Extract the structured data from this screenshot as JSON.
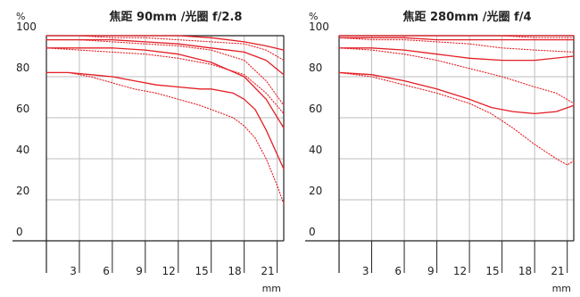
{
  "chart_data": [
    {
      "type": "line",
      "title": "焦距 90mm /光圈 f/2.8",
      "ylabel": "%",
      "xlabel": "mm",
      "xlim": [
        0,
        21.6
      ],
      "ylim": [
        0,
        100
      ],
      "y_ticks": [
        0,
        20,
        40,
        60,
        80,
        100
      ],
      "x_ticks": [
        3,
        6,
        9,
        12,
        15,
        18,
        21
      ],
      "grid": true,
      "series": [
        {
          "style": "solid",
          "x": [
            0,
            3,
            6,
            9,
            12,
            15,
            18,
            20,
            21.6
          ],
          "y": [
            100,
            100,
            100,
            100,
            100,
            99,
            97,
            95,
            93
          ]
        },
        {
          "style": "dotted",
          "x": [
            0,
            3,
            6,
            9,
            12,
            15,
            18,
            20,
            21.6
          ],
          "y": [
            100,
            100,
            99,
            99,
            98,
            97,
            96,
            93,
            88
          ]
        },
        {
          "style": "solid",
          "x": [
            0,
            3,
            6,
            9,
            12,
            15,
            18,
            20,
            21.6
          ],
          "y": [
            98,
            98,
            98,
            97,
            96,
            94,
            92,
            88,
            81
          ]
        },
        {
          "style": "dotted",
          "x": [
            0,
            3,
            6,
            9,
            12,
            15,
            18,
            20,
            21.6
          ],
          "y": [
            98,
            98,
            97,
            96,
            95,
            93,
            88,
            78,
            66
          ]
        },
        {
          "style": "solid",
          "x": [
            0,
            3,
            6,
            9,
            12,
            15,
            18,
            20,
            21.6
          ],
          "y": [
            94,
            94,
            94,
            93,
            91,
            87,
            80,
            69,
            55
          ]
        },
        {
          "style": "dotted",
          "x": [
            0,
            3,
            6,
            9,
            12,
            15,
            18,
            20,
            21.6
          ],
          "y": [
            94,
            93,
            92,
            91,
            89,
            86,
            81,
            72,
            62
          ]
        },
        {
          "style": "solid",
          "x": [
            0,
            2,
            4,
            6,
            8,
            10,
            12,
            14,
            15,
            16,
            17,
            18,
            19,
            20,
            21.6
          ],
          "y": [
            82,
            82,
            81,
            80,
            78,
            76,
            75,
            74,
            74,
            73,
            72,
            69,
            64,
            54,
            35
          ]
        },
        {
          "style": "dotted",
          "x": [
            0,
            2,
            4,
            6,
            8,
            10,
            12,
            14,
            16,
            17,
            18,
            19,
            20,
            21,
            21.6
          ],
          "y": [
            82,
            82,
            80,
            77,
            74,
            72,
            69,
            66,
            62,
            60,
            56,
            50,
            40,
            27,
            18
          ]
        }
      ]
    },
    {
      "type": "line",
      "title": "焦距 280mm /光圈 f/4",
      "ylabel": "%",
      "xlabel": "mm",
      "xlim": [
        0,
        21.6
      ],
      "ylim": [
        0,
        100
      ],
      "y_ticks": [
        0,
        20,
        40,
        60,
        80,
        100
      ],
      "x_ticks": [
        3,
        6,
        9,
        12,
        15,
        18,
        21
      ],
      "grid": true,
      "series": [
        {
          "style": "solid",
          "x": [
            0,
            3,
            6,
            9,
            12,
            15,
            18,
            21.6
          ],
          "y": [
            100,
            100,
            100,
            100,
            100,
            100,
            100,
            100
          ]
        },
        {
          "style": "dotted",
          "x": [
            0,
            3,
            6,
            9,
            12,
            15,
            18,
            21.6
          ],
          "y": [
            100,
            100,
            100,
            100,
            100,
            100,
            99,
            99
          ]
        },
        {
          "style": "solid",
          "x": [
            0,
            3,
            6,
            9,
            12,
            15,
            18,
            21.6
          ],
          "y": [
            99,
            99,
            99,
            98,
            98,
            98,
            98,
            98
          ]
        },
        {
          "style": "dotted",
          "x": [
            0,
            3,
            6,
            9,
            12,
            15,
            18,
            21.6
          ],
          "y": [
            99,
            98,
            98,
            97,
            96,
            94,
            93,
            92
          ]
        },
        {
          "style": "solid",
          "x": [
            0,
            3,
            6,
            9,
            12,
            15,
            18,
            21.6
          ],
          "y": [
            94,
            94,
            93,
            91,
            89,
            88,
            88,
            90
          ]
        },
        {
          "style": "dotted",
          "x": [
            0,
            3,
            6,
            9,
            12,
            15,
            18,
            20,
            21.6
          ],
          "y": [
            94,
            93,
            91,
            88,
            84,
            80,
            75,
            72,
            67
          ]
        },
        {
          "style": "solid",
          "x": [
            0,
            3,
            6,
            9,
            12,
            14,
            16,
            18,
            20,
            21.6
          ],
          "y": [
            82,
            81,
            78,
            74,
            69,
            65,
            63,
            62,
            63,
            66
          ]
        },
        {
          "style": "dotted",
          "x": [
            0,
            3,
            6,
            9,
            12,
            14,
            16,
            18,
            20,
            21,
            21.6
          ],
          "y": [
            82,
            80,
            76,
            72,
            67,
            62,
            55,
            47,
            40,
            37,
            39
          ]
        }
      ]
    }
  ]
}
